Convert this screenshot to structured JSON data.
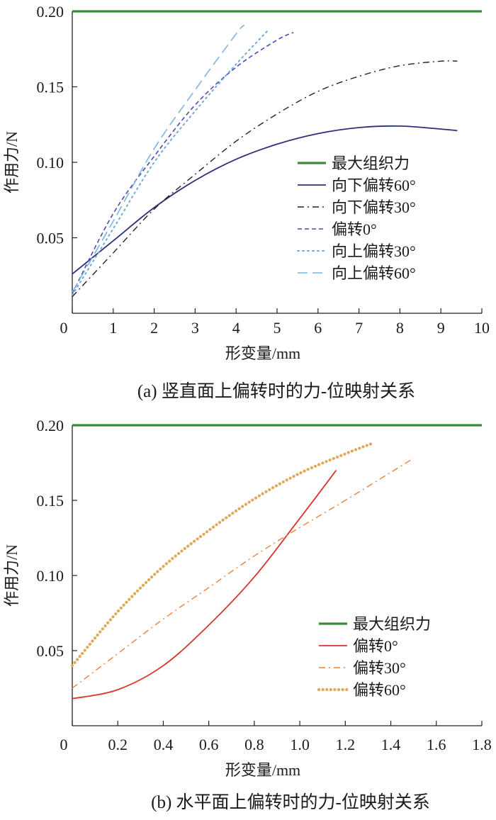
{
  "chart_data": [
    {
      "type": "line",
      "caption": "(a) 竖直面上偏转时的力-位映射关系",
      "xlabel": "形变量/mm",
      "ylabel": "作用力/N",
      "xlim": [
        0,
        10
      ],
      "ylim": [
        0,
        0.2
      ],
      "xticks": [
        0,
        1,
        2,
        3,
        4,
        5,
        6,
        7,
        8,
        9,
        10
      ],
      "yticks": [
        0.05,
        0.1,
        0.15,
        0.2
      ],
      "ytick_labels": [
        "0.05",
        "0.10",
        "0.15",
        "0.20"
      ],
      "legend_position": "right",
      "series": [
        {
          "name": "最大组织力",
          "color": "#3a8a3a",
          "style": "solid-thick",
          "x": [
            0,
            10
          ],
          "y": [
            0.2,
            0.2
          ]
        },
        {
          "name": "向下偏转60°",
          "color": "#2e2f7a",
          "style": "solid",
          "x": [
            0,
            1,
            2,
            3,
            4,
            5,
            6,
            7,
            8,
            9,
            9.4
          ],
          "y": [
            0.026,
            0.048,
            0.07,
            0.088,
            0.102,
            0.112,
            0.119,
            0.123,
            0.124,
            0.122,
            0.121
          ]
        },
        {
          "name": "向下偏转30°",
          "color": "#222222",
          "style": "dashdot",
          "x": [
            0,
            1,
            2,
            3,
            4,
            5,
            6,
            7,
            8,
            9,
            9.4
          ],
          "y": [
            0.011,
            0.04,
            0.069,
            0.092,
            0.114,
            0.132,
            0.147,
            0.157,
            0.164,
            0.167,
            0.167
          ]
        },
        {
          "name": "偏转0°",
          "color": "#4a4ab0",
          "style": "dashed",
          "x": [
            0,
            1,
            2,
            3,
            4,
            5,
            5.4
          ],
          "y": [
            0.013,
            0.066,
            0.104,
            0.138,
            0.163,
            0.181,
            0.186
          ]
        },
        {
          "name": "向上偏转30°",
          "color": "#6fa8dc",
          "style": "dotted",
          "x": [
            0,
            1,
            2,
            3,
            4,
            4.8
          ],
          "y": [
            0.012,
            0.056,
            0.1,
            0.134,
            0.165,
            0.188
          ]
        },
        {
          "name": "向上偏转60°",
          "color": "#7fb3e0",
          "style": "longdash",
          "x": [
            0,
            1,
            2,
            3,
            4,
            4.2
          ],
          "y": [
            0.014,
            0.061,
            0.109,
            0.148,
            0.185,
            0.191
          ]
        }
      ]
    },
    {
      "type": "line",
      "caption": "(b) 水平面上偏转时的力-位映射关系",
      "xlabel": "形变量/mm",
      "ylabel": "作用力/N",
      "xlim": [
        0,
        1.8
      ],
      "ylim": [
        0,
        0.2
      ],
      "xticks": [
        0,
        0.2,
        0.4,
        0.6,
        0.8,
        1.0,
        1.2,
        1.4,
        1.6,
        1.8
      ],
      "xtick_labels": [
        "0",
        "0.2",
        "0.4",
        "0.6",
        "0.8",
        "1.0",
        "1.2",
        "1.4",
        "1.6",
        "1.8"
      ],
      "yticks": [
        0.05,
        0.1,
        0.15,
        0.2
      ],
      "ytick_labels": [
        "0.05",
        "0.10",
        "0.15",
        "0.20"
      ],
      "legend_position": "bottom-right",
      "series": [
        {
          "name": "最大组织力",
          "color": "#3a8a3a",
          "style": "solid-thick",
          "x": [
            0,
            1.8
          ],
          "y": [
            0.2,
            0.2
          ]
        },
        {
          "name": "偏转0°",
          "color": "#d9342b",
          "style": "solid",
          "x": [
            0,
            0.2,
            0.4,
            0.6,
            0.8,
            1.0,
            1.16
          ],
          "y": [
            0.018,
            0.024,
            0.04,
            0.067,
            0.099,
            0.138,
            0.17
          ]
        },
        {
          "name": "偏转30°",
          "color": "#f07f3c",
          "style": "dashdot",
          "x": [
            0,
            0.2,
            0.4,
            0.6,
            0.8,
            1.0,
            1.2,
            1.5
          ],
          "y": [
            0.025,
            0.048,
            0.071,
            0.092,
            0.113,
            0.132,
            0.15,
            0.178
          ]
        },
        {
          "name": "偏转60°",
          "color": "#e2a85a",
          "style": "dots",
          "x": [
            0,
            0.2,
            0.4,
            0.6,
            0.8,
            1.0,
            1.2,
            1.32
          ],
          "y": [
            0.04,
            0.076,
            0.106,
            0.13,
            0.151,
            0.168,
            0.181,
            0.188
          ]
        }
      ]
    }
  ]
}
